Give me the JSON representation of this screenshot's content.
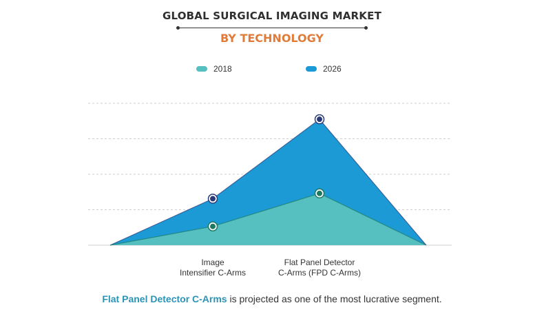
{
  "header": {
    "title": "GLOBAL SURGICAL IMAGING MARKET",
    "subtitle": "BY TECHNOLOGY"
  },
  "colors": {
    "series_2018_fill": "#56bfc0",
    "series_2018_marker": "#1d7a62",
    "series_2026_fill": "#1b9ad6",
    "series_2026_marker": "#2a3a78",
    "subtitle": "#e07b39",
    "footer_highlight": "#2b93b6",
    "grid": "#cccccc"
  },
  "chart_data": {
    "type": "area",
    "categories": [
      "",
      "Image\nIntensifier C-Arms",
      "Flat Panel Detector\nC-Arms (FPD C-Arms)",
      ""
    ],
    "series": [
      {
        "name": "2018",
        "values": [
          0,
          0.53,
          1.46,
          0
        ]
      },
      {
        "name": "2026",
        "values": [
          0,
          1.31,
          3.55,
          0
        ]
      }
    ],
    "ylim": [
      0,
      4
    ],
    "grid": true,
    "legend": "top-center",
    "xlabel": "",
    "ylabel": ""
  },
  "footer": {
    "highlight": "Flat Panel Detector C-Arms",
    "rest": " is projected as one of the most lucrative segment."
  }
}
